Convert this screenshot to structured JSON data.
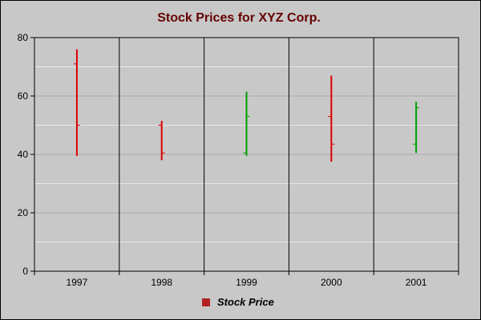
{
  "colors": {
    "background": "#c8c8c8",
    "plot_background": "#c8c8c8",
    "title": "#660000",
    "up": "#00a000",
    "down": "#dd0000",
    "legend_swatch": "#b22222",
    "gridline": "#e8e8e8"
  },
  "chart_data": {
    "type": "hloc",
    "title": "Stock Prices for XYZ Corp.",
    "xlabel": "",
    "ylabel": "",
    "ylim": [
      0,
      80
    ],
    "yticks": [
      "0",
      "20",
      "40",
      "60",
      "80"
    ],
    "categories": [
      "1997",
      "1998",
      "1999",
      "2000",
      "2001"
    ],
    "grid": true,
    "legend_position": "bottom",
    "series": [
      {
        "name": "Stock Price",
        "data": [
          {
            "x": "1997",
            "high": 76,
            "low": 39.5,
            "open": 71,
            "close": 50,
            "direction": "down"
          },
          {
            "x": "1998",
            "high": 51.5,
            "low": 38,
            "open": 50,
            "close": 40.5,
            "direction": "down"
          },
          {
            "x": "1999",
            "high": 61.5,
            "low": 39.5,
            "open": 40.5,
            "close": 53,
            "direction": "up"
          },
          {
            "x": "2000",
            "high": 67,
            "low": 37.5,
            "open": 53,
            "close": 43.5,
            "direction": "down"
          },
          {
            "x": "2001",
            "high": 58,
            "low": 40.5,
            "open": 43.5,
            "close": 56,
            "direction": "up"
          }
        ]
      }
    ]
  }
}
